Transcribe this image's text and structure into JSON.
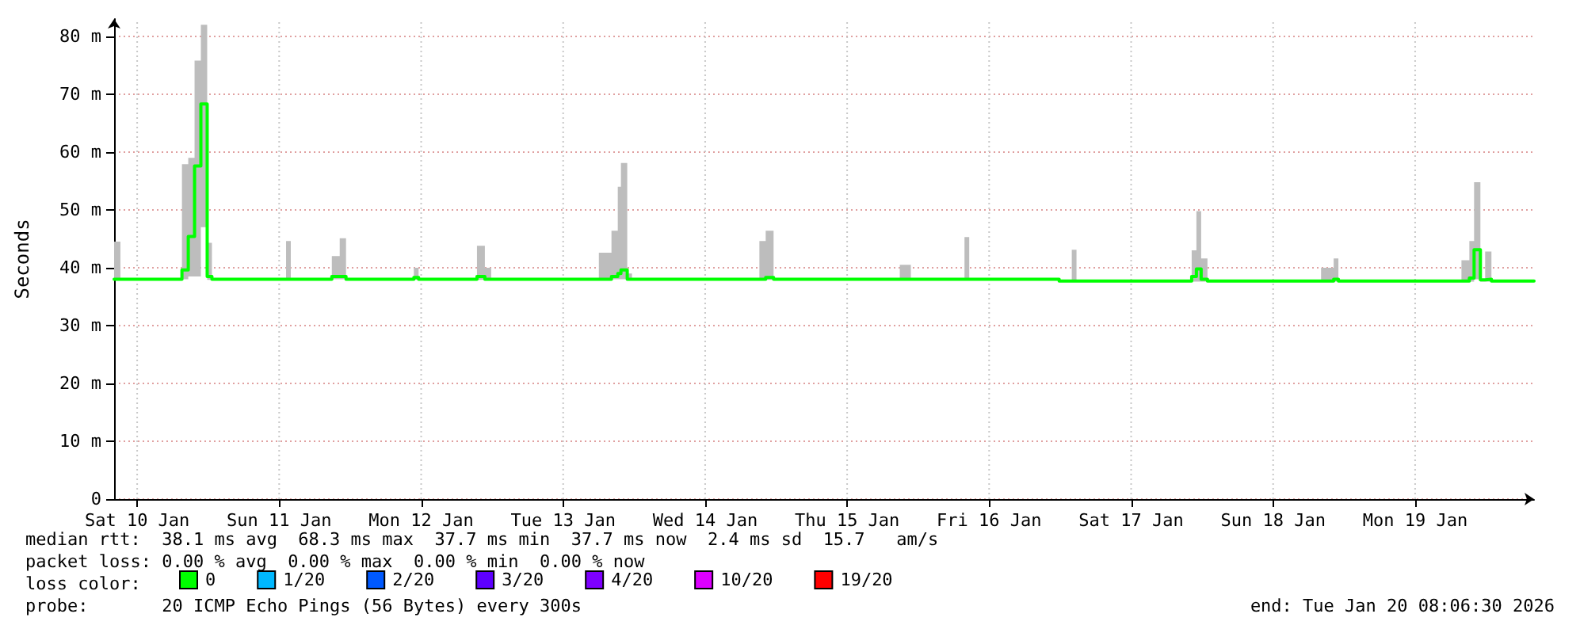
{
  "chart_data": {
    "type": "step",
    "ylabel": "Seconds",
    "x": [
      "2026-01-10T08:06",
      "2026-01-10T09:10",
      "2026-01-10T19:34",
      "2026-01-10T20:38",
      "2026-01-10T21:42",
      "2026-01-10T22:46",
      "2026-01-10T23:50",
      "2026-01-11T00:38",
      "2026-01-11T13:10",
      "2026-01-11T13:58",
      "2026-01-11T20:54",
      "2026-01-11T22:14",
      "2026-01-11T23:18",
      "2026-01-12T10:46",
      "2026-01-12T11:34",
      "2026-01-12T21:26",
      "2026-01-12T22:46",
      "2026-01-12T23:50",
      "2026-01-13T18:02",
      "2026-01-13T20:10",
      "2026-01-13T21:14",
      "2026-01-13T21:46",
      "2026-01-13T22:50",
      "2026-01-13T23:38",
      "2026-01-14T21:10",
      "2026-01-14T22:14",
      "2026-01-14T23:34",
      "2026-01-15T20:54",
      "2026-01-15T22:46",
      "2026-01-16T07:50",
      "2026-01-16T08:38",
      "2026-01-16T23:50",
      "2026-01-17T01:58",
      "2026-01-17T02:46",
      "2026-01-17T22:14",
      "2026-01-17T23:02",
      "2026-01-17T23:50",
      "2026-01-18T00:54",
      "2026-01-18T20:06",
      "2026-01-18T22:14",
      "2026-01-18T23:02",
      "2026-01-19T19:50",
      "2026-01-19T21:10",
      "2026-01-19T21:58",
      "2026-01-19T23:02",
      "2026-01-19T23:50",
      "2026-01-20T00:54",
      "2026-01-20T08:06"
    ],
    "series": [
      {
        "name": "0",
        "color": "#00ff00",
        "values": [
          38.0,
          38.0,
          39.6,
          45.4,
          57.6,
          68.3,
          38.5,
          38.0,
          38.0,
          38.0,
          38.5,
          38.5,
          38.0,
          38.3,
          38.0,
          38.5,
          38.0,
          38.0,
          38.0,
          38.5,
          39.0,
          39.6,
          38.0,
          38.0,
          38.0,
          38.3,
          38.0,
          38.0,
          38.0,
          38.0,
          38.0,
          37.7,
          37.7,
          37.7,
          38.5,
          39.8,
          38.0,
          37.7,
          37.7,
          38.0,
          37.7,
          37.7,
          38.2,
          43.1,
          37.9,
          38.0,
          37.7,
          37.7
        ],
        "lower": [
          37.9,
          37.9,
          38.0,
          38.5,
          38.5,
          47.0,
          37.9,
          37.9,
          37.9,
          37.9,
          38.0,
          38.0,
          37.9,
          37.9,
          37.9,
          37.9,
          37.9,
          37.9,
          37.9,
          38.0,
          38.0,
          38.0,
          37.9,
          37.9,
          37.9,
          37.9,
          37.9,
          37.9,
          37.9,
          37.9,
          37.9,
          37.6,
          37.6,
          37.6,
          37.6,
          37.6,
          37.6,
          37.6,
          37.6,
          37.6,
          37.6,
          37.6,
          37.6,
          38.0,
          37.6,
          37.6,
          37.6,
          37.6
        ],
        "upper": [
          44.5,
          38.0,
          57.9,
          59.0,
          75.8,
          82.0,
          44.3,
          38.0,
          44.6,
          38.0,
          42.0,
          45.1,
          38.0,
          40.0,
          38.0,
          43.8,
          40.0,
          38.0,
          42.6,
          46.4,
          54.0,
          58.1,
          39.0,
          38.0,
          44.6,
          46.4,
          38.0,
          40.5,
          38.0,
          45.3,
          38.0,
          37.7,
          43.1,
          37.7,
          43.0,
          49.8,
          41.6,
          37.7,
          40.0,
          41.6,
          37.7,
          41.3,
          44.6,
          54.8,
          38.0,
          42.8,
          37.7,
          37.7
        ]
      },
      {
        "name": "1/20",
        "color": "#00b8ff",
        "values": [
          null,
          null,
          null,
          null,
          null,
          null,
          null,
          null,
          null,
          null,
          null,
          null,
          null,
          null,
          null,
          null,
          null,
          null,
          null,
          null,
          null,
          null,
          null,
          null,
          null,
          null,
          null,
          null,
          null,
          null,
          null,
          null,
          null,
          null,
          null,
          null,
          null,
          null,
          null,
          null,
          null,
          null,
          null,
          null,
          null,
          null,
          null,
          null
        ]
      },
      {
        "name": "2/20",
        "color": "#0059ff",
        "values": [
          null,
          null,
          null,
          null,
          null,
          null,
          null,
          null,
          null,
          null,
          null,
          null,
          null,
          null,
          null,
          null,
          null,
          null,
          null,
          null,
          null,
          null,
          null,
          null,
          null,
          null,
          null,
          null,
          null,
          null,
          null,
          null,
          null,
          null,
          null,
          null,
          null,
          null,
          null,
          null,
          null,
          null,
          null,
          null,
          null,
          null,
          null,
          null
        ]
      },
      {
        "name": "3/20",
        "color": "#5e00ff",
        "values": [
          null,
          null,
          null,
          null,
          null,
          null,
          null,
          null,
          null,
          null,
          null,
          null,
          null,
          null,
          null,
          null,
          null,
          null,
          null,
          null,
          null,
          null,
          null,
          null,
          null,
          null,
          null,
          null,
          null,
          null,
          null,
          null,
          null,
          null,
          null,
          null,
          null,
          null,
          null,
          null,
          null,
          null,
          null,
          null,
          null,
          null,
          null,
          null
        ]
      },
      {
        "name": "4/20",
        "color": "#7e00ff",
        "values": [
          null,
          null,
          null,
          null,
          null,
          null,
          null,
          null,
          null,
          null,
          null,
          null,
          null,
          null,
          null,
          null,
          null,
          null,
          null,
          null,
          null,
          null,
          null,
          null,
          null,
          null,
          null,
          null,
          null,
          null,
          null,
          null,
          null,
          null,
          null,
          null,
          null,
          null,
          null,
          null,
          null,
          null,
          null,
          null,
          null,
          null,
          null,
          null
        ]
      },
      {
        "name": "10/20",
        "color": "#dd00ff",
        "values": [
          null,
          null,
          null,
          null,
          null,
          null,
          null,
          null,
          null,
          null,
          null,
          null,
          null,
          null,
          null,
          null,
          null,
          null,
          null,
          null,
          null,
          null,
          null,
          null,
          null,
          null,
          null,
          null,
          null,
          null,
          null,
          null,
          null,
          null,
          null,
          null,
          null,
          null,
          null,
          null,
          null,
          null,
          null,
          null,
          null,
          null,
          null,
          null
        ]
      },
      {
        "name": "19/20",
        "color": "#ff0000",
        "values": [
          null,
          null,
          null,
          null,
          null,
          null,
          null,
          null,
          null,
          null,
          null,
          null,
          null,
          null,
          null,
          null,
          null,
          null,
          null,
          null,
          null,
          null,
          null,
          null,
          null,
          null,
          null,
          null,
          null,
          null,
          null,
          null,
          null,
          null,
          null,
          null,
          null,
          null,
          null,
          null,
          null,
          null,
          null,
          null,
          null,
          null,
          null,
          null
        ]
      }
    ],
    "xlim": [
      "2026-01-10T08:06",
      "2026-01-20T08:06"
    ],
    "xticks": [
      {
        "value": "2026-01-10T12:00",
        "label": "Sat 10 Jan"
      },
      {
        "value": "2026-01-11T12:00",
        "label": "Sun 11 Jan"
      },
      {
        "value": "2026-01-12T12:00",
        "label": "Mon 12 Jan"
      },
      {
        "value": "2026-01-13T12:00",
        "label": "Tue 13 Jan"
      },
      {
        "value": "2026-01-14T12:00",
        "label": "Wed 14 Jan"
      },
      {
        "value": "2026-01-15T12:00",
        "label": "Thu 15 Jan"
      },
      {
        "value": "2026-01-16T12:00",
        "label": "Fri 16 Jan"
      },
      {
        "value": "2026-01-17T12:00",
        "label": "Sat 17 Jan"
      },
      {
        "value": "2026-01-18T12:00",
        "label": "Sun 18 Jan"
      },
      {
        "value": "2026-01-19T12:00",
        "label": "Mon 19 Jan"
      }
    ],
    "ylim": [
      0,
      83
    ],
    "yticks": [
      0,
      {
        "value": 10,
        "label": "10 m"
      },
      {
        "value": 20,
        "label": "20 m"
      },
      {
        "value": 30,
        "label": "30 m"
      },
      {
        "value": 40,
        "label": "40 m"
      },
      {
        "value": 50,
        "label": "50 m"
      },
      {
        "value": 60,
        "label": "60 m"
      },
      {
        "value": 70,
        "label": "70 m"
      },
      {
        "value": 80,
        "label": "80 m"
      }
    ],
    "grid": true,
    "legend": "bottom left",
    "marker": "none",
    "line_style": "solid",
    "annotations": [
      "median rtt:  38.1 ms avg  68.3 ms max  37.7 ms min  37.7 ms now  2.4 ms sd  15.7   am/s",
      "packet loss: 0.00 % avg  0.00 % max  0.00 % min  0.00 % now",
      "loss color:",
      "probe:       20 ICMP Echo Pings (56 Bytes) every 300s",
      "end: Tue Jan 20 08:06:30 2026"
    ]
  }
}
